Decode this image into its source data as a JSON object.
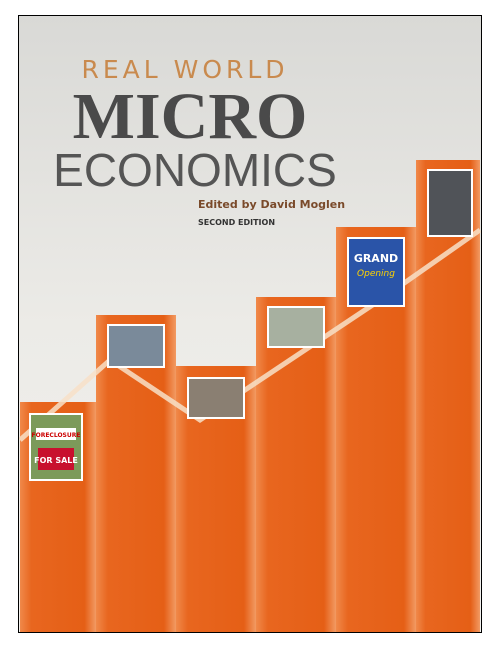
{
  "cover": {
    "series_label": "REAL WORLD",
    "title_line1": "MICRO",
    "title_line2": "ECONOMICS",
    "editor": "Edited by David Moglen",
    "edition": "SECOND EDITION",
    "photo_texts": {
      "foreclosure": "FORECLOSURE",
      "for_sale": "FOR SALE",
      "grand": "GRAND",
      "opening": "Opening"
    }
  }
}
